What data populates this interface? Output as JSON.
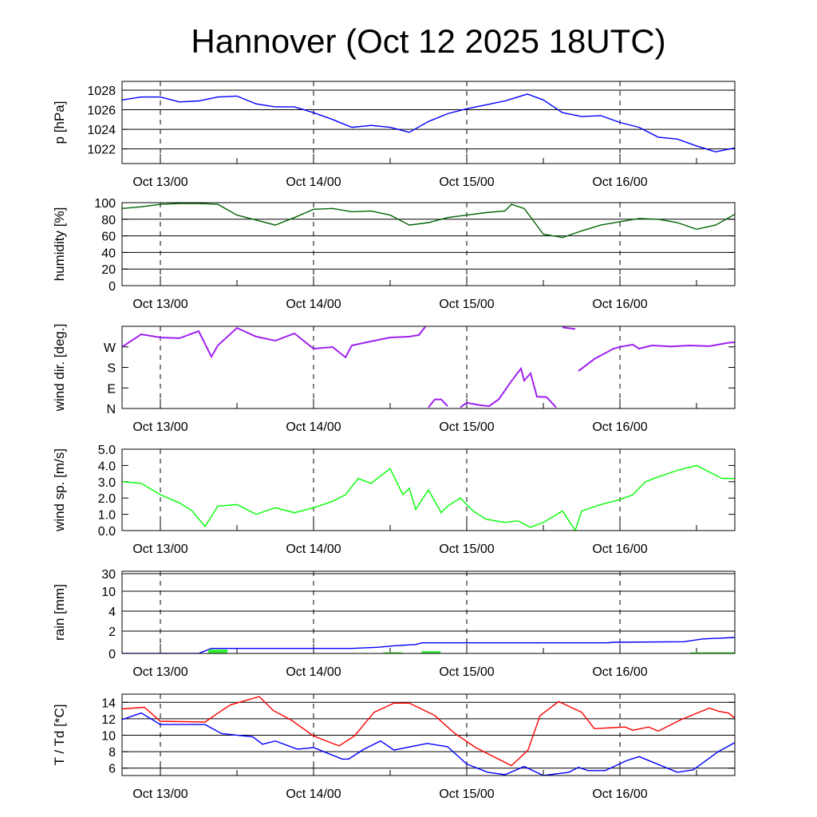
{
  "title": "Hannover (Oct 12 2025 18UTC)",
  "xtick_labels": [
    "Oct 13/00",
    "Oct 14/00",
    "Oct 15/00",
    "Oct 16/00"
  ],
  "chart_data": [
    {
      "type": "line",
      "id": "pressure",
      "ylabel": "p [hPa]",
      "x_unit": "hours since Oct 12 18UTC",
      "xlim": [
        0,
        96
      ],
      "ylim": [
        1020.5,
        1028.9
      ],
      "yticks": [
        1022,
        1024,
        1026,
        1028
      ],
      "ytick_labels": [
        "1022",
        "1024",
        "1026",
        "1028"
      ],
      "grid": true,
      "series": [
        {
          "name": "pressure",
          "color": "#0000ff",
          "points": [
            [
              0,
              1027.0
            ],
            [
              3,
              1027.3
            ],
            [
              6,
              1027.3
            ],
            [
              9,
              1026.8
            ],
            [
              12,
              1026.9
            ],
            [
              15,
              1027.3
            ],
            [
              18,
              1027.4
            ],
            [
              21,
              1026.6
            ],
            [
              24,
              1026.3
            ],
            [
              27,
              1026.3
            ],
            [
              30,
              1025.7
            ],
            [
              33,
              1025.0
            ],
            [
              36,
              1024.2
            ],
            [
              39,
              1024.4
            ],
            [
              42,
              1024.2
            ],
            [
              45,
              1023.7
            ],
            [
              48,
              1024.8
            ],
            [
              51,
              1025.6
            ],
            [
              54,
              1026.1
            ],
            [
              57,
              1026.5
            ],
            [
              60,
              1026.9
            ],
            [
              63.5,
              1027.6
            ],
            [
              66,
              1027.0
            ],
            [
              69,
              1025.7
            ],
            [
              72,
              1025.3
            ],
            [
              75,
              1025.4
            ],
            [
              78,
              1024.7
            ],
            [
              81,
              1024.2
            ],
            [
              84,
              1023.2
            ],
            [
              87,
              1023.0
            ],
            [
              90,
              1022.3
            ],
            [
              93,
              1021.7
            ],
            [
              96,
              1022.1
            ]
          ]
        }
      ]
    },
    {
      "type": "line",
      "id": "humidity",
      "ylabel": "humidity [%]",
      "ylim": [
        0,
        100
      ],
      "yticks": [
        0,
        20,
        40,
        60,
        80,
        100
      ],
      "ytick_labels": [
        "0",
        "20",
        "40",
        "60",
        "80",
        "100"
      ],
      "grid": true,
      "series": [
        {
          "name": "humidity",
          "color": "#006400",
          "points": [
            [
              0,
              93
            ],
            [
              3,
              95
            ],
            [
              6,
              98
            ],
            [
              9,
              99
            ],
            [
              12,
              99
            ],
            [
              15,
              98
            ],
            [
              18,
              85
            ],
            [
              21,
              79
            ],
            [
              24,
              73
            ],
            [
              27,
              82
            ],
            [
              30,
              92
            ],
            [
              33,
              93
            ],
            [
              36,
              89
            ],
            [
              39,
              90
            ],
            [
              42,
              85
            ],
            [
              45,
              73
            ],
            [
              48,
              76
            ],
            [
              51,
              82
            ],
            [
              54,
              85
            ],
            [
              57,
              88
            ],
            [
              60,
              90
            ],
            [
              61,
              98
            ],
            [
              63,
              93
            ],
            [
              66,
              62
            ],
            [
              69,
              58
            ],
            [
              72,
              66
            ],
            [
              75,
              73
            ],
            [
              78,
              77
            ],
            [
              81,
              81
            ],
            [
              84,
              80
            ],
            [
              87,
              76
            ],
            [
              90,
              68
            ],
            [
              93,
              73
            ],
            [
              96,
              86
            ]
          ]
        }
      ]
    },
    {
      "type": "line",
      "id": "wind-direction",
      "ylabel": "wind dir. [deg.]",
      "ylim": [
        0,
        360
      ],
      "yticks": [
        0,
        90,
        180,
        270
      ],
      "ytick_labels": [
        "N",
        "E",
        "S",
        "W"
      ],
      "grid": false,
      "series": [
        {
          "name": "wind direction",
          "color": "#a020f0",
          "points": [
            [
              0,
              270
            ],
            [
              3,
              325
            ],
            [
              6,
              311
            ],
            [
              9,
              308
            ],
            [
              12,
              339
            ],
            [
              14,
              227
            ],
            [
              15,
              276
            ],
            [
              18,
              353
            ],
            [
              21,
              315
            ],
            [
              24,
              297
            ],
            [
              27,
              329
            ],
            [
              30,
              262
            ],
            [
              33,
              269
            ],
            [
              35,
              224
            ],
            [
              36,
              276
            ],
            [
              39,
              294
            ],
            [
              42,
              311
            ],
            [
              45,
              315
            ],
            [
              46.5,
              322
            ],
            [
              47.5,
              358
            ],
            [
              48,
              5
            ],
            [
              49,
              40
            ],
            [
              50,
              40
            ],
            [
              51,
              10
            ],
            [
              52,
              355
            ],
            [
              53,
              5
            ],
            [
              54,
              25
            ],
            [
              56,
              15
            ],
            [
              57.5,
              10
            ],
            [
              59,
              40
            ],
            [
              61,
              120
            ],
            [
              62.5,
              175
            ],
            [
              63,
              122
            ],
            [
              64,
              154
            ],
            [
              65,
              52
            ],
            [
              66.5,
              50
            ],
            [
              68,
              5
            ],
            [
              69,
              355
            ],
            [
              71,
              348
            ],
            [
              71.5,
              164
            ],
            [
              74,
              217
            ],
            [
              77,
              262
            ],
            [
              78,
              270
            ],
            [
              80,
              280
            ],
            [
              81,
              262
            ],
            [
              83,
              276
            ],
            [
              86,
              272
            ],
            [
              89,
              276
            ],
            [
              92,
              273
            ],
            [
              95,
              288
            ],
            [
              96,
              290
            ]
          ]
        }
      ]
    },
    {
      "type": "line",
      "id": "wind-speed",
      "ylabel": "wind sp. [m/s]",
      "ylim": [
        0,
        5
      ],
      "yticks": [
        0,
        1,
        2,
        3,
        4,
        5
      ],
      "ytick_labels": [
        "0.0",
        "1.0",
        "2.0",
        "3.0",
        "4.0",
        "5.0"
      ],
      "grid": false,
      "series": [
        {
          "name": "wind speed",
          "color": "#00ff00",
          "points": [
            [
              0,
              3.0
            ],
            [
              3,
              2.9
            ],
            [
              6,
              2.2
            ],
            [
              9,
              1.7
            ],
            [
              11,
              1.2
            ],
            [
              13,
              0.25
            ],
            [
              15,
              1.5
            ],
            [
              18,
              1.6
            ],
            [
              21,
              1.0
            ],
            [
              24,
              1.4
            ],
            [
              27,
              1.1
            ],
            [
              30,
              1.4
            ],
            [
              33,
              1.8
            ],
            [
              35,
              2.2
            ],
            [
              37,
              3.2
            ],
            [
              39,
              2.9
            ],
            [
              42,
              3.8
            ],
            [
              44,
              2.2
            ],
            [
              45,
              2.6
            ],
            [
              46,
              1.3
            ],
            [
              48,
              2.5
            ],
            [
              50,
              1.1
            ],
            [
              51,
              1.5
            ],
            [
              53,
              2.0
            ],
            [
              55,
              1.2
            ],
            [
              57,
              0.7
            ],
            [
              60,
              0.5
            ],
            [
              62,
              0.6
            ],
            [
              64,
              0.2
            ],
            [
              66,
              0.5
            ],
            [
              69,
              1.2
            ],
            [
              71,
              0.0
            ],
            [
              72,
              1.2
            ],
            [
              75,
              1.6
            ],
            [
              78,
              1.9
            ],
            [
              80,
              2.2
            ],
            [
              82,
              3.0
            ],
            [
              84,
              3.3
            ],
            [
              87,
              3.7
            ],
            [
              90,
              4.0
            ],
            [
              92,
              3.6
            ],
            [
              94,
              3.2
            ],
            [
              96,
              3.2
            ]
          ]
        }
      ]
    },
    {
      "type": "bar+line",
      "id": "rain",
      "ylabel": "rain [mm]",
      "ylim": [
        0,
        35
      ],
      "yticks": [
        0,
        2,
        4,
        10,
        30
      ],
      "ytick_labels": [
        "0",
        "2",
        "4",
        "10",
        "30"
      ],
      "grid": true,
      "series": [
        {
          "name": "accumulated rain",
          "color": "#0000ff",
          "points": [
            [
              0,
              0
            ],
            [
              12,
              0
            ],
            [
              14,
              0.45
            ],
            [
              36,
              0.45
            ],
            [
              40,
              0.55
            ],
            [
              43,
              0.7
            ],
            [
              46,
              0.8
            ],
            [
              47,
              0.95
            ],
            [
              76,
              0.95
            ],
            [
              77,
              1.0
            ],
            [
              88,
              1.05
            ],
            [
              91,
              1.3
            ],
            [
              96,
              1.43
            ]
          ]
        },
        {
          "name": "rain amount",
          "color": "#33ee33",
          "bars": [
            [
              13.5,
              16.5,
              0.35
            ],
            [
              40.9,
              43.9,
              0.1
            ],
            [
              46.9,
              49.9,
              0.2
            ],
            [
              89,
              96,
              0.1
            ]
          ]
        }
      ]
    },
    {
      "type": "line",
      "id": "temperature",
      "ylabel": "T / Td [*C]",
      "ylim": [
        5.1,
        15
      ],
      "yticks": [
        6,
        8,
        10,
        12,
        14
      ],
      "ytick_labels": [
        "6",
        "8",
        "10",
        "12",
        "14"
      ],
      "grid": true,
      "series": [
        {
          "name": "T",
          "color": "#ff0000",
          "points": [
            [
              0,
              13.2
            ],
            [
              3.5,
              13.4
            ],
            [
              6,
              11.7
            ],
            [
              13,
              11.6
            ],
            [
              15.6,
              13.0
            ],
            [
              17,
              13.7
            ],
            [
              21.5,
              14.7
            ],
            [
              23.7,
              13.0
            ],
            [
              26.6,
              11.8
            ],
            [
              30,
              9.9
            ],
            [
              34,
              8.7
            ],
            [
              36.4,
              9.9
            ],
            [
              39.5,
              12.8
            ],
            [
              42.6,
              13.9
            ],
            [
              45,
              13.9
            ],
            [
              49,
              12.4
            ],
            [
              52,
              10.3
            ],
            [
              55.4,
              8.5
            ],
            [
              61,
              6.3
            ],
            [
              63.6,
              8.2
            ],
            [
              65.5,
              12.4
            ],
            [
              68.4,
              14.1
            ],
            [
              72,
              12.8
            ],
            [
              74,
              10.8
            ],
            [
              78.8,
              11.0
            ],
            [
              80,
              10.6
            ],
            [
              82.5,
              11.0
            ],
            [
              84,
              10.5
            ],
            [
              87.6,
              11.9
            ],
            [
              92,
              13.3
            ],
            [
              93.5,
              12.9
            ],
            [
              95,
              12.7
            ],
            [
              96,
              12.1
            ]
          ]
        },
        {
          "name": "Td",
          "color": "#0000ff",
          "points": [
            [
              0,
              11.9
            ],
            [
              3,
              12.7
            ],
            [
              6,
              11.3
            ],
            [
              13,
              11.3
            ],
            [
              15.6,
              10.2
            ],
            [
              20.5,
              9.8
            ],
            [
              22,
              8.9
            ],
            [
              24,
              9.3
            ],
            [
              27.5,
              8.3
            ],
            [
              30,
              8.5
            ],
            [
              34.5,
              7.1
            ],
            [
              35.5,
              7.1
            ],
            [
              37.9,
              8.3
            ],
            [
              40.5,
              9.3
            ],
            [
              42.6,
              8.2
            ],
            [
              47.8,
              9.0
            ],
            [
              51,
              8.6
            ],
            [
              54,
              6.5
            ],
            [
              57.3,
              5.5
            ],
            [
              60,
              5.2
            ],
            [
              63,
              6.2
            ],
            [
              66,
              5.1
            ],
            [
              70,
              5.5
            ],
            [
              71.5,
              6.1
            ],
            [
              73,
              5.7
            ],
            [
              75.7,
              5.7
            ],
            [
              79,
              6.9
            ],
            [
              81,
              7.4
            ],
            [
              87,
              5.5
            ],
            [
              89.5,
              5.8
            ],
            [
              93.4,
              8.0
            ],
            [
              96,
              9.1
            ]
          ]
        }
      ]
    }
  ]
}
